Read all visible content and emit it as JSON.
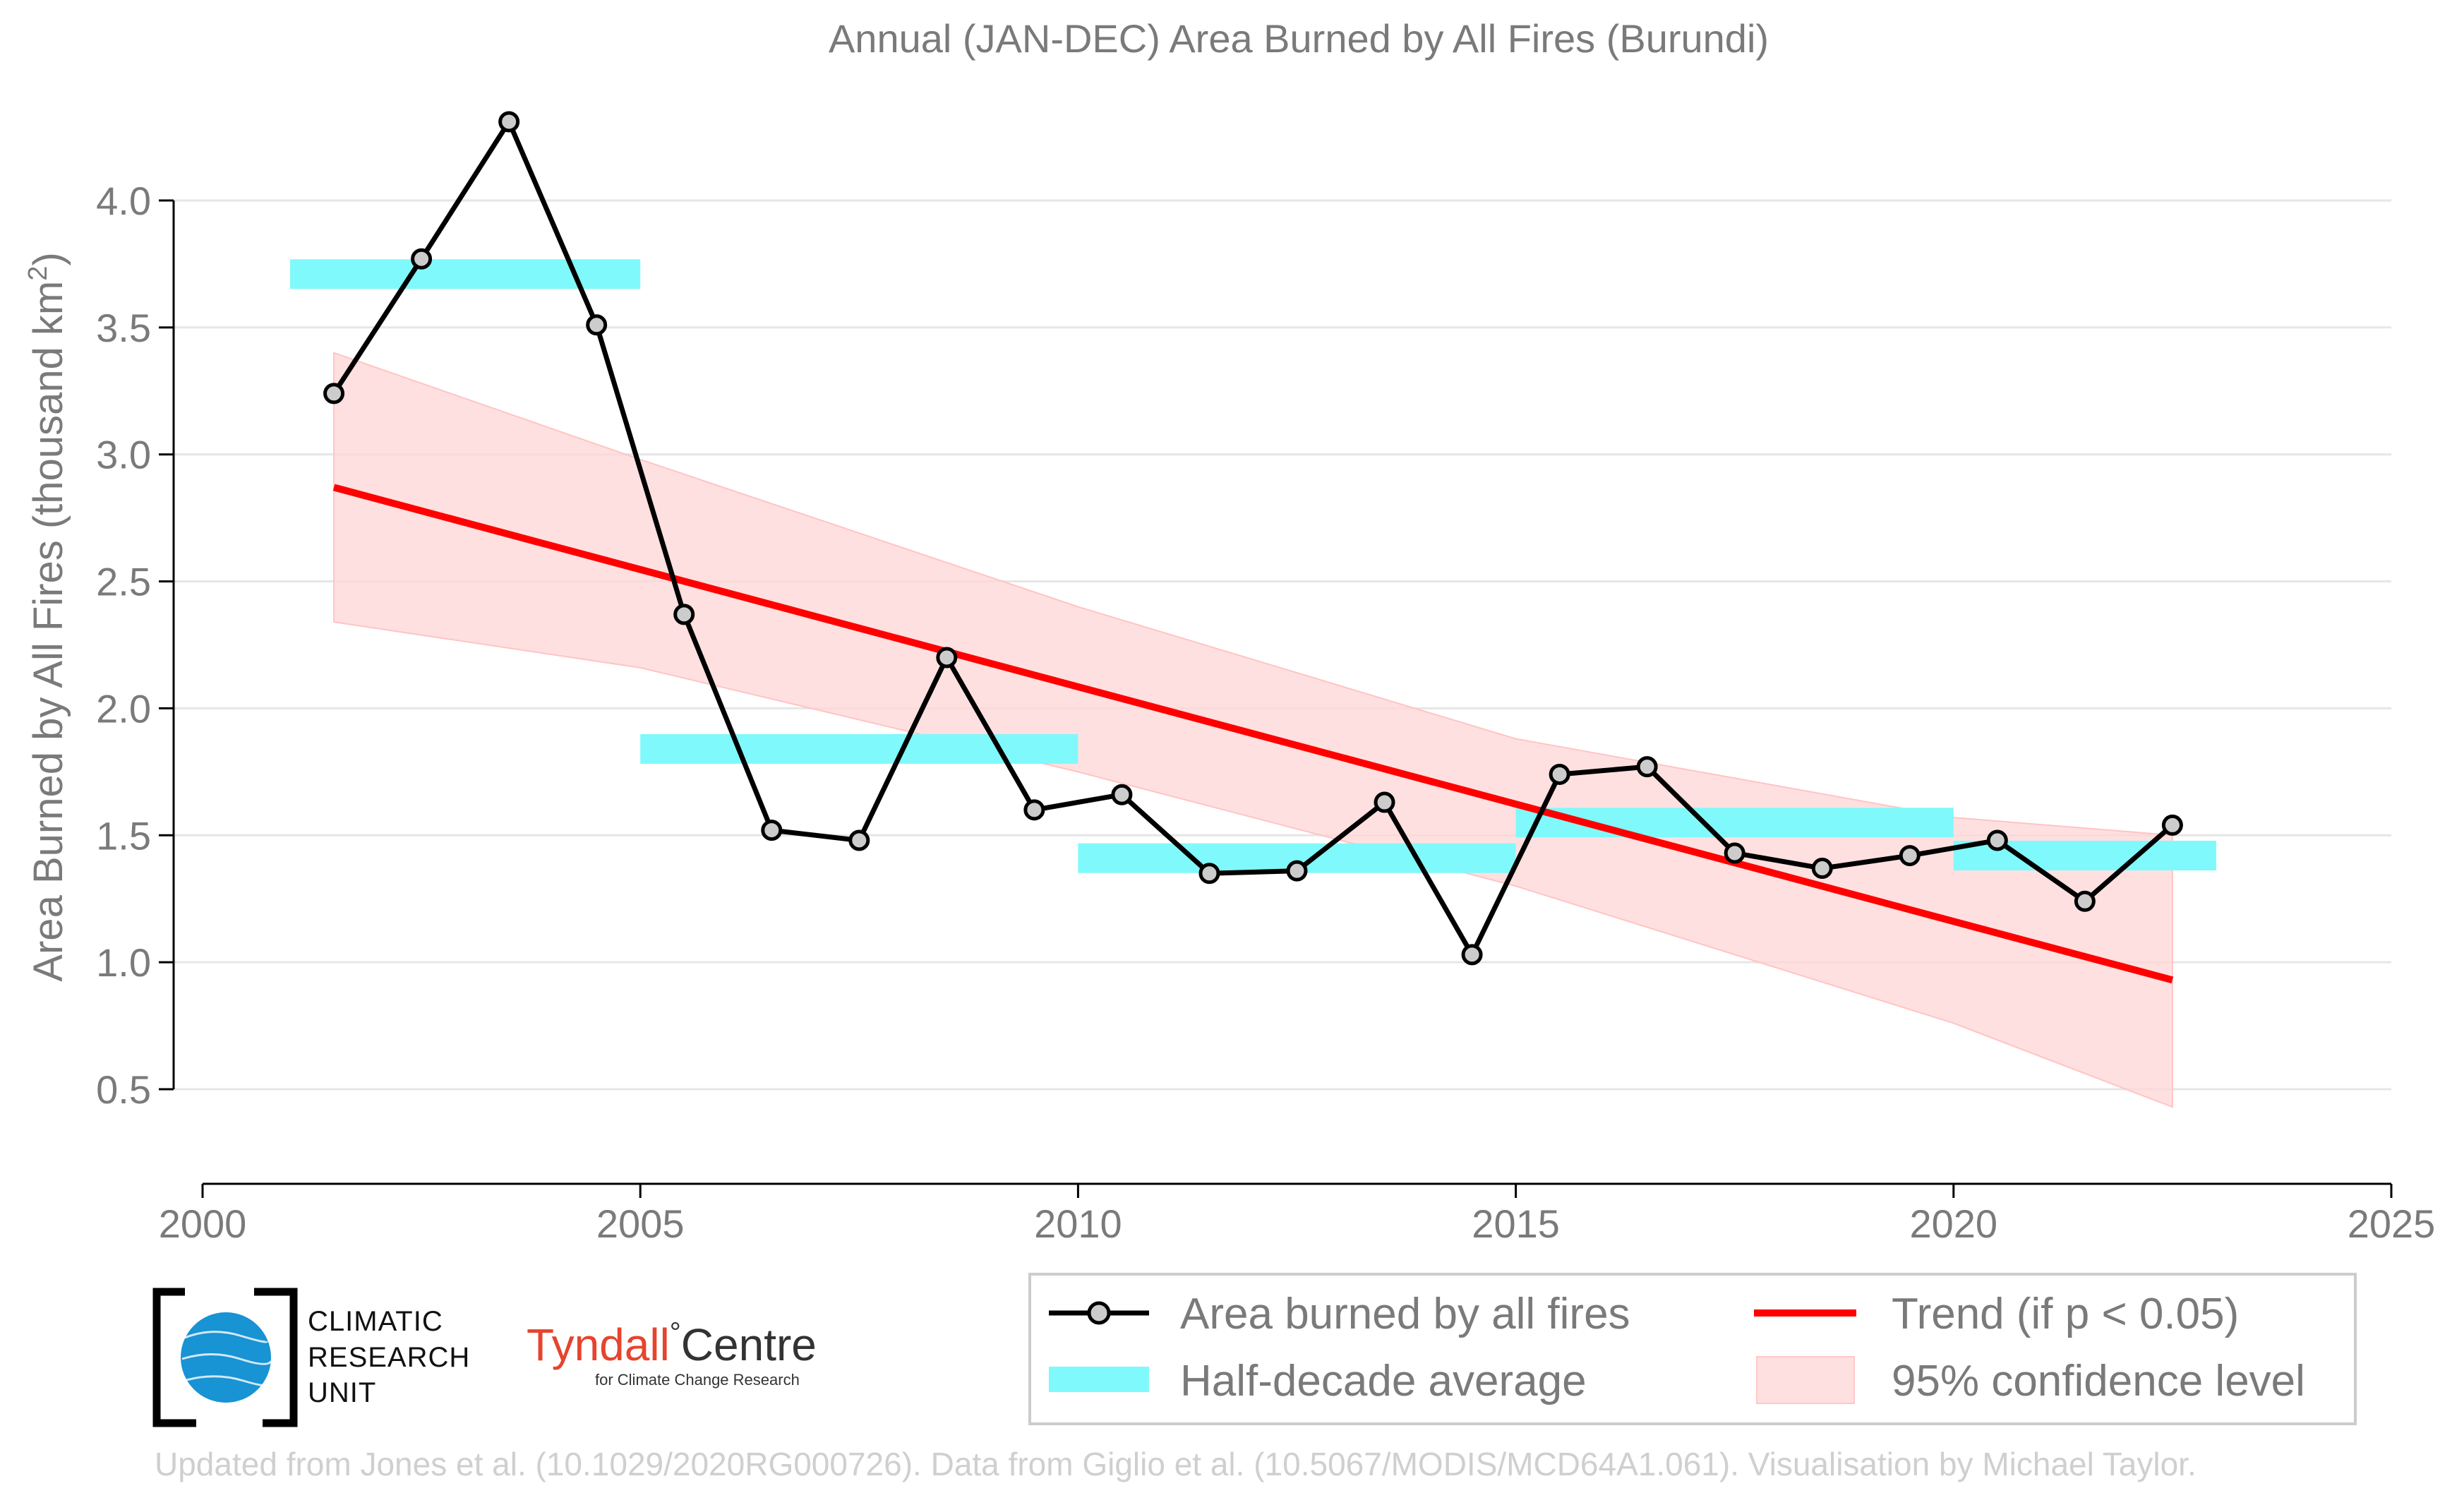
{
  "chart_data": {
    "type": "line",
    "title": "Annual (JAN-DEC) Area Burned by All Fires (Burundi)",
    "ylabel_main": "Area Burned by All Fires (thousand km",
    "ylabel_sup": "2",
    "ylabel_close": ")",
    "xlabel": "",
    "xlim": [
      2000,
      2025
    ],
    "ylim": [
      0.5,
      4.3
    ],
    "xticks": [
      2000,
      2005,
      2010,
      2015,
      2020,
      2025
    ],
    "yticks": [
      0.5,
      1.0,
      1.5,
      2.0,
      2.5,
      3.0,
      3.5,
      4.0
    ],
    "ytick_labels": [
      "0.5",
      "1.0",
      "1.5",
      "2.0",
      "2.5",
      "3.0",
      "3.5",
      "4.0"
    ],
    "series": [
      {
        "name": "Area burned by all fires",
        "color": "#000000",
        "marker_fill": "#cccccc",
        "x": [
          2001.5,
          2002.5,
          2003.5,
          2004.5,
          2005.5,
          2006.5,
          2007.5,
          2008.5,
          2009.5,
          2010.5,
          2011.5,
          2012.5,
          2013.5,
          2014.5,
          2015.5,
          2016.5,
          2017.5,
          2018.5,
          2019.5,
          2020.5,
          2021.5,
          2022.5
        ],
        "y": [
          3.24,
          3.77,
          4.31,
          3.51,
          2.37,
          1.52,
          1.48,
          2.2,
          1.6,
          1.66,
          1.35,
          1.36,
          1.63,
          1.03,
          1.74,
          1.77,
          1.43,
          1.37,
          1.42,
          1.48,
          1.24,
          1.54
        ]
      }
    ],
    "half_decade_average": {
      "name": "Half-decade average",
      "color": "#7ff9fb",
      "segments": [
        {
          "x0": 2001,
          "x1": 2005,
          "y": 3.71
        },
        {
          "x0": 2005,
          "x1": 2010,
          "y": 1.84
        },
        {
          "x0": 2010,
          "x1": 2015,
          "y": 1.41
        },
        {
          "x0": 2015,
          "x1": 2020,
          "y": 1.55
        },
        {
          "x0": 2020,
          "x1": 2023,
          "y": 1.42
        }
      ]
    },
    "trend": {
      "name": "Trend (if p < 0.05)",
      "color": "#ff0000",
      "x": [
        2001.5,
        2022.5
      ],
      "y": [
        2.87,
        0.93
      ]
    },
    "confidence": {
      "name": "95% confidence level",
      "color": "#ffd6d6",
      "x": [
        2001.5,
        2005,
        2010,
        2015,
        2020,
        2022.5
      ],
      "upper": [
        3.4,
        2.98,
        2.4,
        1.88,
        1.57,
        1.5
      ],
      "lower": [
        2.34,
        2.16,
        1.75,
        1.3,
        0.76,
        0.43
      ]
    },
    "legend_position": "bottom-right"
  },
  "legend": {
    "area_label": "Area burned by all fires",
    "half_label": "Half-decade average",
    "trend_label": "Trend (if p < 0.05)",
    "conf_label": "95% confidence level"
  },
  "logos": {
    "cru_line1": "CLIMATIC",
    "cru_line2": "RESEARCH",
    "cru_line3": "UNIT",
    "tyndall_left": "Tyndall",
    "tyndall_degree": "°",
    "tyndall_right": "Centre",
    "tyndall_sub": "for Climate Change Research"
  },
  "credit": "Updated from Jones et al. (10.1029/2020RG000726). Data from Giglio et al. (10.5067/MODIS/MCD64A1.061). Visualisation by Michael Taylor."
}
